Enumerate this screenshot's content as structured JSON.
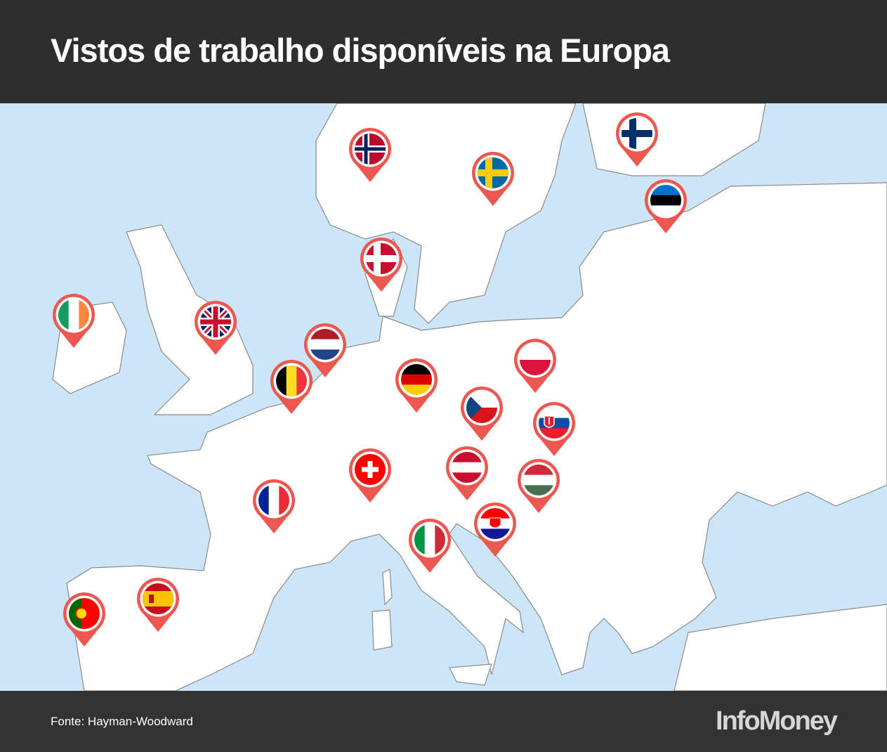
{
  "header": {
    "title": "Vistos de trabalho disponíveis na Europa"
  },
  "footer": {
    "source": "Fonte: Hayman-Woodward",
    "logo": "InfoMoney"
  }
}
